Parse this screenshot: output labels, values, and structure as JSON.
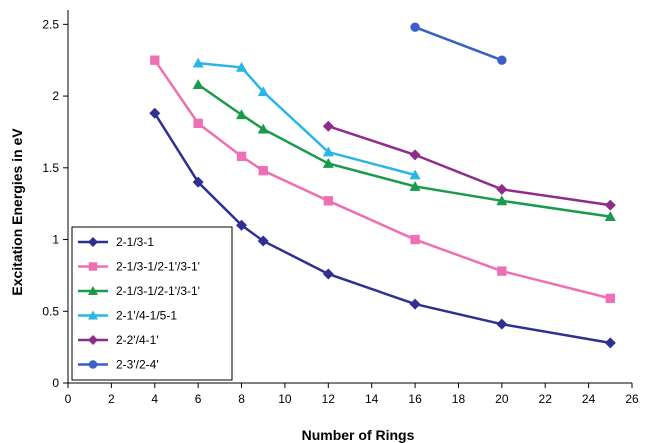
{
  "chart_data": {
    "type": "line",
    "title": "",
    "xlabel": "Number of Rings",
    "ylabel": "Excitation Energies in eV",
    "xlim": [
      0,
      26
    ],
    "ylim": [
      0,
      2.6
    ],
    "xticks": [
      "0",
      "2",
      "4",
      "6",
      "8",
      "10",
      "12",
      "14",
      "16",
      "18",
      "20",
      "22",
      "24",
      "26"
    ],
    "yticks": [
      "0",
      "0.5",
      "1",
      "1.5",
      "2",
      "2.5"
    ],
    "grid": false,
    "legend_position": "bottom-left",
    "series": [
      {
        "name": "2-1/3-1",
        "color": "#2e3192",
        "marker": "diamond",
        "x": [
          4,
          6,
          8,
          9,
          12,
          16,
          20,
          25
        ],
        "y": [
          1.88,
          1.4,
          1.1,
          0.99,
          0.76,
          0.55,
          0.41,
          0.28
        ]
      },
      {
        "name": "2-1/3-1/2-1'/3-1'",
        "color": "#ee6fb4",
        "marker": "square",
        "x": [
          4,
          6,
          8,
          9,
          12,
          16,
          20,
          25
        ],
        "y": [
          2.25,
          1.81,
          1.58,
          1.48,
          1.27,
          1.0,
          0.78,
          0.59
        ]
      },
      {
        "name": "2-1/3-1/2-1'/3-1'",
        "color": "#1a9b4b",
        "marker": "triangle",
        "x": [
          6,
          8,
          9,
          12,
          16,
          20,
          25
        ],
        "y": [
          2.08,
          1.87,
          1.77,
          1.53,
          1.37,
          1.27,
          1.16
        ]
      },
      {
        "name": "2-1'/4-1/5-1",
        "color": "#29b6e6",
        "marker": "triangle",
        "x": [
          6,
          8,
          9,
          12,
          16
        ],
        "y": [
          2.23,
          2.2,
          2.03,
          1.61,
          1.45
        ]
      },
      {
        "name": "2-2'/4-1'",
        "color": "#8e2c8a",
        "marker": "diamond",
        "x": [
          12,
          16,
          20,
          25
        ],
        "y": [
          1.79,
          1.59,
          1.35,
          1.24
        ]
      },
      {
        "name": "2-3'/2-4'",
        "color": "#3b5fc4",
        "marker": "circle",
        "x": [
          16,
          20
        ],
        "y": [
          2.48,
          2.25
        ]
      }
    ]
  }
}
